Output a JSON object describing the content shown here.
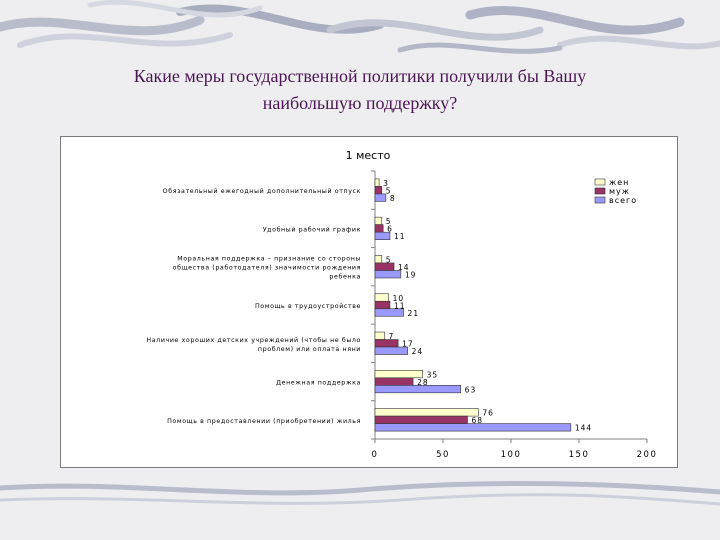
{
  "slide": {
    "title_line1": "Какие  меры государственной политики получили бы Вашу",
    "title_line2": "наибольшую поддержку?"
  },
  "colors": {
    "zhen": "#ffffcc",
    "muzh": "#993366",
    "vsego": "#9999ff",
    "title": "#4b1553",
    "background": "#eeeef0"
  },
  "chart_data": {
    "type": "bar",
    "orientation": "horizontal",
    "title": "1 место",
    "categories": [
      [
        "Обязательный ежегодный дополнительный отпуск"
      ],
      [
        "Удобный рабочий график"
      ],
      [
        "Моральная поддержка – признание со стороны",
        "общества (работодателя) значимости рождения",
        "ребенка"
      ],
      [
        "Помощь в трудоустройстве"
      ],
      [
        "Наличие хороших детских учреждений (чтобы не было",
        "проблем) или оплата няни"
      ],
      [
        "Денежная поддержка"
      ],
      [
        "Помощь в предоставлении (приобретении) жилья"
      ]
    ],
    "series": [
      {
        "name": "жен",
        "color": "#ffffcc",
        "values": [
          3,
          5,
          5,
          10,
          7,
          35,
          76
        ]
      },
      {
        "name": "муж",
        "color": "#993366",
        "values": [
          5,
          6,
          14,
          11,
          17,
          28,
          68
        ]
      },
      {
        "name": "всего",
        "color": "#9999ff",
        "values": [
          8,
          11,
          19,
          21,
          24,
          63,
          144
        ]
      }
    ],
    "xlim": [
      0,
      200
    ],
    "xticks": [
      0,
      50,
      100,
      150,
      200
    ],
    "grid": false,
    "legend_position": "top-right",
    "data_labels": true
  }
}
